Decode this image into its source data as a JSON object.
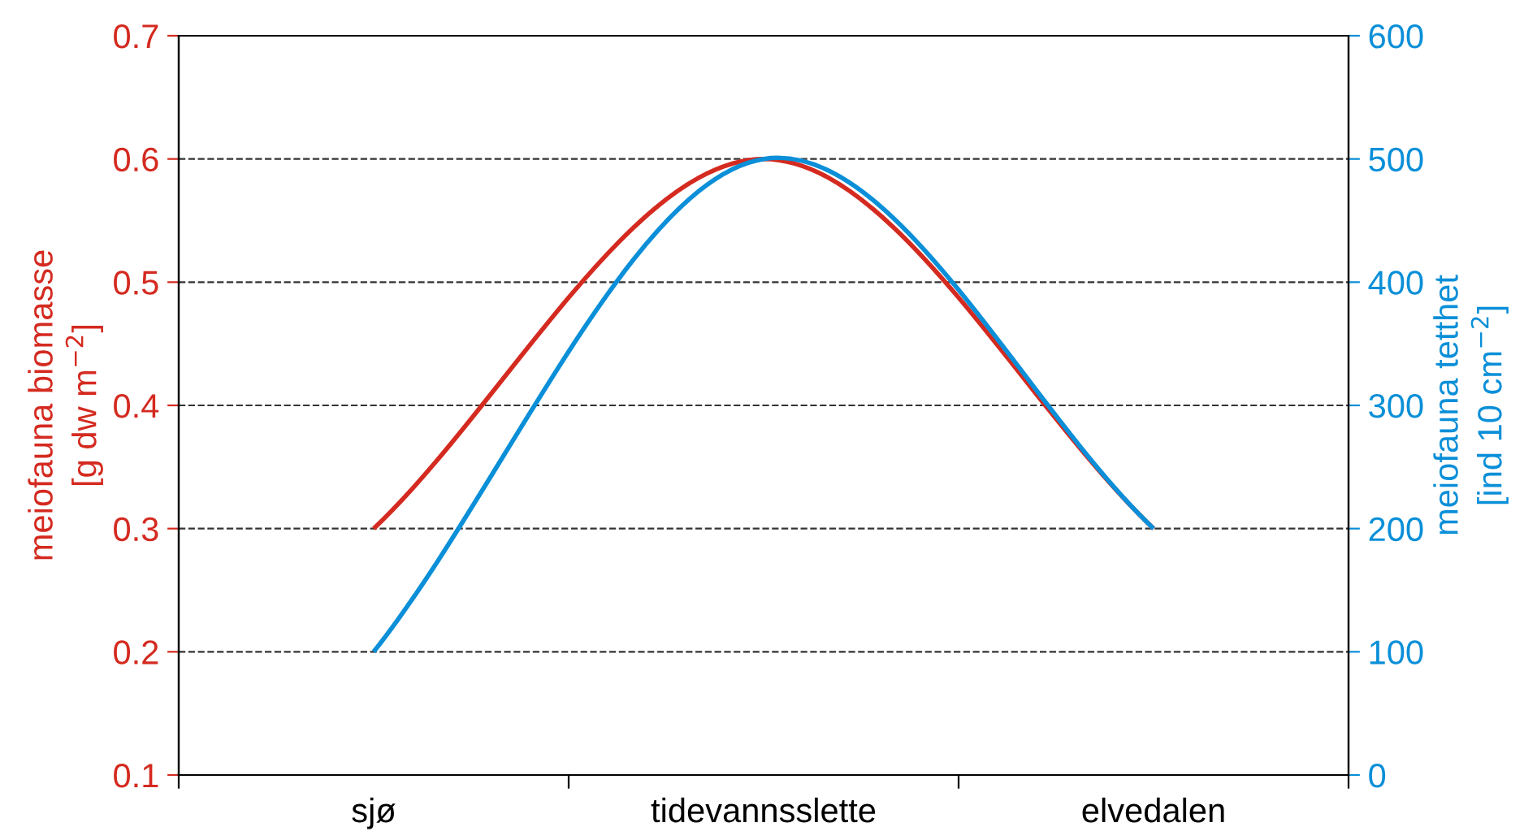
{
  "chart_data": {
    "type": "line",
    "categories": [
      "sjø",
      "tidevannsslette",
      "elvedalen"
    ],
    "ylabel": "meiofauna biomasse\n[g dw m$^{−2}$]",
    "y2label": "meiofauna tetthet\n[ind 10 cm$^{−2}$]",
    "series": [
      {
        "color": "#d42a20",
        "values": [
          0.3,
          0.6,
          0.3
        ]
      },
      {
        "color": "#0a8fd8",
        "axis": "y2",
        "values": [
          100,
          500,
          200
        ]
      }
    ],
    "ylim": [
      0.1,
      0.7
    ],
    "yticks": [
      0.1,
      0.2,
      0.3,
      0.4,
      0.5,
      0.6,
      0.7
    ],
    "y2lim": [
      0,
      600
    ],
    "y2ticks": [
      0,
      100,
      200,
      300,
      400,
      500,
      600
    ],
    "grid": "y",
    "line_style": "solid",
    "marker": "none"
  }
}
